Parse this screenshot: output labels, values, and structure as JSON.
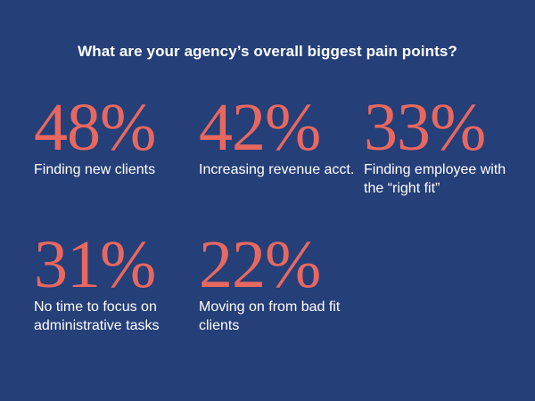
{
  "title": "What are your agency’s overall biggest pain points?",
  "colors": {
    "background": "#253f79",
    "accent": "#e8685f",
    "text": "#ffffff"
  },
  "chart_data": {
    "type": "table",
    "title": "What are your agency’s overall biggest pain points?",
    "unit": "%",
    "items": [
      {
        "value": 48,
        "display": "48%",
        "label": "Finding new clients"
      },
      {
        "value": 42,
        "display": "42%",
        "label": "Increasing revenue acct."
      },
      {
        "value": 33,
        "display": "33%",
        "label": "Finding employee with the “right fit”"
      },
      {
        "value": 31,
        "display": "31%",
        "label": "No time to focus on administrative tasks"
      },
      {
        "value": 22,
        "display": "22%",
        "label": "Moving on from bad fit clients"
      }
    ]
  }
}
